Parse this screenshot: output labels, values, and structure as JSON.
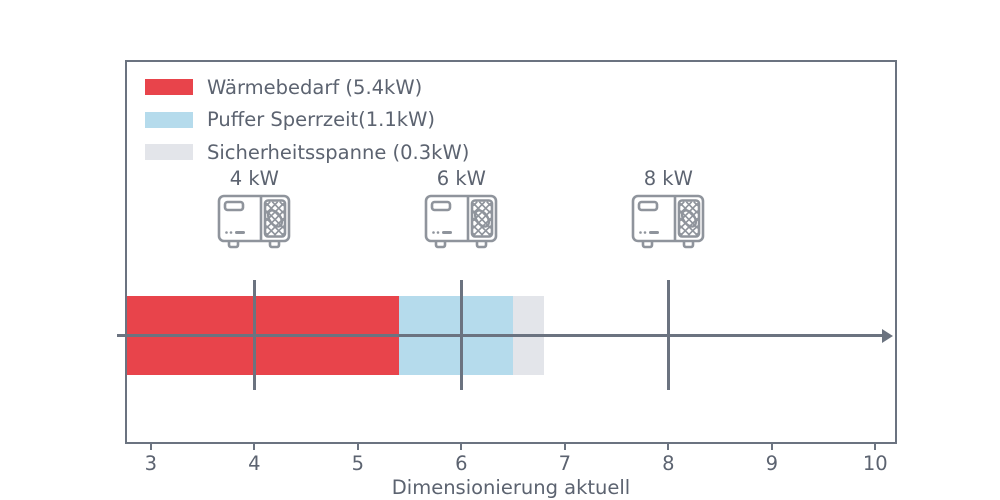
{
  "colors": {
    "background": "#ffffff",
    "axis_line": "#6b7380",
    "text": "#5c6370",
    "icon_outline": "#8f949c",
    "red": "#e8444b",
    "light_blue": "#b5dbec",
    "light_gray": "#e3e5ea"
  },
  "chart_data": {
    "type": "bar",
    "orientation": "horizontal",
    "title": "",
    "xlabel": "Dimensionierung aktuell",
    "ylabel": "",
    "xlim": [
      2.75,
      10.21
    ],
    "xticks": [
      3,
      4,
      5,
      6,
      7,
      8,
      9,
      10
    ],
    "grid": false,
    "legend_position": "upper-left",
    "segments": [
      {
        "name": "Wärmebedarf",
        "legend_label": "Wärmebedarf (5.4kW)",
        "value_kw": 5.4,
        "start": 2.75,
        "end": 5.4,
        "color": "#e8444b"
      },
      {
        "name": "Puffer Sperrzeit",
        "legend_label": "Puffer Sperrzeit(1.1kW)",
        "value_kw": 1.1,
        "start": 5.4,
        "end": 6.5,
        "color": "#b5dbec"
      },
      {
        "name": "Sicherheitsspanne",
        "legend_label": "Sicherheitsspanne (0.3kW)",
        "value_kw": 0.3,
        "start": 6.5,
        "end": 6.8,
        "color": "#e3e5ea"
      }
    ],
    "pump_markers": [
      {
        "label": "4 kW",
        "value_kw": 4
      },
      {
        "label": "6 kW",
        "value_kw": 6
      },
      {
        "label": "8 kW",
        "value_kw": 8
      }
    ]
  }
}
